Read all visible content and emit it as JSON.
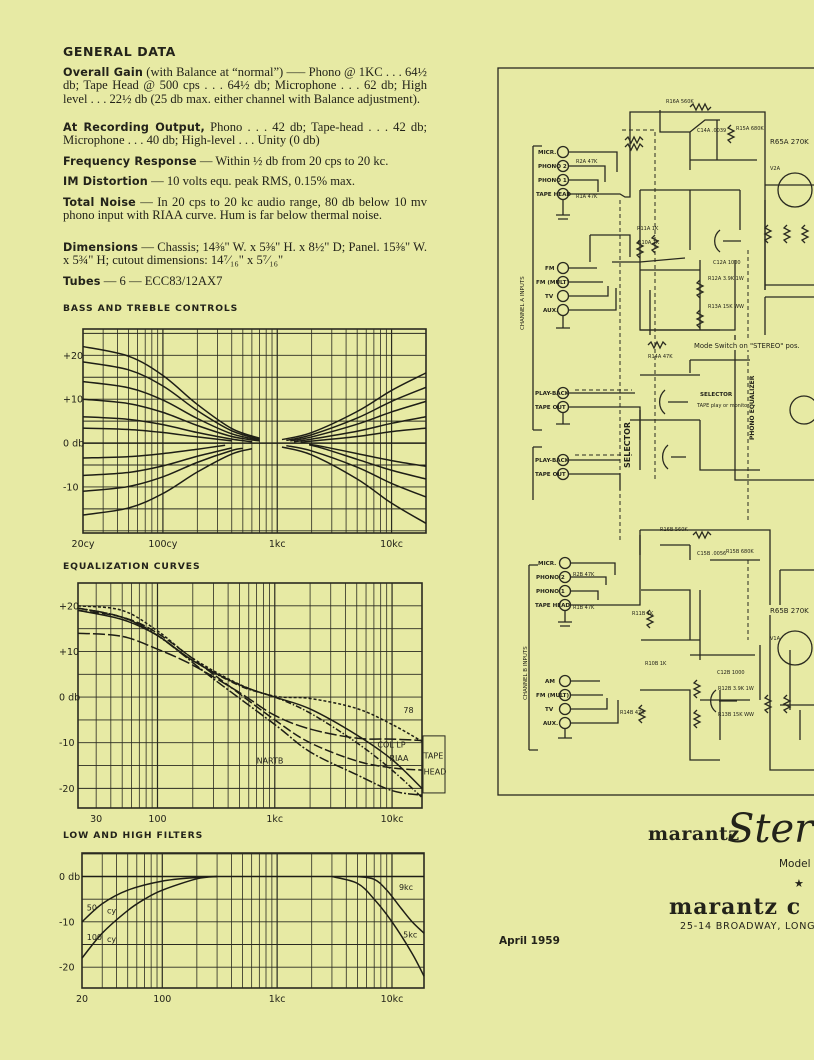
{
  "general_data": {
    "heading": "GENERAL DATA",
    "items": [
      {
        "label": "Overall Gain",
        "text": " (with Balance at “normal”) —– Phono @ 1KC . . . 64½ db; Tape Head @ 500 cps . . . 64½ db; Microphone . . . 62 db; High level . . . 22½ db (25 db max. either channel with Balance adjustment)."
      },
      {
        "label": "At Recording Output,",
        "text": " Phono . . . 42 db; Tape-head . . . 42 db; Microphone . . . 40 db; High-level . . . Unity (0 db)"
      },
      {
        "label": "Frequency Response",
        "text": " — Within ½ db from 20 cps to 20 kc."
      },
      {
        "label": "IM Distortion",
        "text": " — 10 volts equ. peak RMS, 0.15% max."
      },
      {
        "label": "Total Noise",
        "text": " — In 20 cps to 20 kc audio range, 80 db below 10 mv phono input with RIAA curve. Hum is far below thermal noise."
      },
      {
        "label": "Dimensions",
        "text": " — Chassis; 14⅜\" W. x 5⅜\" H. x 8½\" D; Panel. 15⅜\" W. x 5¾\" H; cutout dimensions: 14⁷⁄₁₆\" x 5⁷⁄₁₆\""
      },
      {
        "label": "Tubes",
        "text": " — 6 — ECC83/12AX7"
      }
    ]
  },
  "chart_data": [
    {
      "type": "line",
      "title": "BASS AND TREBLE CONTROLS",
      "x_scale": "log",
      "xlim": [
        20,
        20000
      ],
      "ylim": [
        -20.5,
        26
      ],
      "grid": true,
      "xticks": [
        {
          "value": 20,
          "label": "20cy"
        },
        {
          "value": 100,
          "label": "100cy"
        },
        {
          "value": 1000,
          "label": "1kc"
        },
        {
          "value": 10000,
          "label": "10kc"
        }
      ],
      "yticks": [
        {
          "value": 20,
          "label": "+20"
        },
        {
          "value": 10,
          "label": "+10"
        },
        {
          "value": 0,
          "label": "0 db"
        },
        {
          "value": -10,
          "label": "-10"
        }
      ],
      "series": [
        {
          "x": [
            20,
            20000
          ],
          "y": [
            0,
            0
          ]
        },
        {
          "x": [
            20,
            50,
            100,
            200,
            400,
            700
          ],
          "y": [
            22,
            19.8,
            15.4,
            8.8,
            3.3,
            1.1
          ]
        },
        {
          "x": [
            20,
            50,
            100,
            200,
            400,
            700
          ],
          "y": [
            18.5,
            16.7,
            13,
            7.4,
            2.8,
            0.9
          ]
        },
        {
          "x": [
            20,
            50,
            100,
            200,
            400,
            700
          ],
          "y": [
            14,
            12.6,
            9.8,
            5.6,
            2.1,
            0.7
          ]
        },
        {
          "x": [
            20,
            50,
            100,
            200,
            400,
            700
          ],
          "y": [
            10,
            9,
            7,
            4,
            1.5,
            0.5
          ]
        },
        {
          "x": [
            20,
            50,
            100,
            200,
            400,
            600
          ],
          "y": [
            6,
            5.4,
            4.2,
            2.4,
            0.9,
            0.3
          ]
        },
        {
          "x": [
            20,
            50,
            100,
            200,
            400
          ],
          "y": [
            3.4,
            3.1,
            2.4,
            1.4,
            0.5
          ]
        },
        {
          "x": [
            20,
            50,
            100,
            200,
            350
          ],
          "y": [
            -3.4,
            -3.1,
            -2.4,
            -1.4,
            -0.5
          ]
        },
        {
          "x": [
            20,
            50,
            100,
            200,
            400
          ],
          "y": [
            -7.4,
            -6.7,
            -5.2,
            -3,
            -1.1
          ]
        },
        {
          "x": [
            20,
            50,
            100,
            200,
            400,
            500
          ],
          "y": [
            -11,
            -9.9,
            -7.7,
            -4.4,
            -1.7,
            -1.2
          ]
        },
        {
          "x": [
            20,
            50,
            100,
            200,
            400,
            600
          ],
          "y": [
            -16.4,
            -14.8,
            -11.5,
            -6.6,
            -2.5,
            -1.3
          ]
        },
        {
          "x": [
            1100,
            2000,
            5000,
            10000,
            20000
          ],
          "y": [
            0.8,
            2.4,
            7.2,
            12,
            16
          ]
        },
        {
          "x": [
            1200,
            2000,
            5000,
            10000,
            20000
          ],
          "y": [
            0.6,
            1.9,
            5.7,
            9.5,
            12.7
          ]
        },
        {
          "x": [
            1300,
            2000,
            5000,
            10000,
            20000
          ],
          "y": [
            0.5,
            1.4,
            4.3,
            7.1,
            9.5
          ]
        },
        {
          "x": [
            1400,
            2000,
            5000,
            10000,
            20000
          ],
          "y": [
            0.3,
            0.9,
            2.7,
            4.5,
            6
          ]
        },
        {
          "x": [
            1600,
            2500,
            5000,
            10000,
            20000
          ],
          "y": [
            0.2,
            0.7,
            1.5,
            2.6,
            3.4
          ]
        },
        {
          "x": [
            1900,
            2500,
            5000,
            10000,
            20000
          ],
          "y": [
            -0.3,
            -0.8,
            -2.4,
            -4,
            -5.3
          ]
        },
        {
          "x": [
            1900,
            2500,
            5000,
            10000,
            20000
          ],
          "y": [
            -0.4,
            -1.2,
            -3.7,
            -6.2,
            -8.2
          ]
        },
        {
          "x": [
            1200,
            2000,
            5000,
            10000,
            20000
          ],
          "y": [
            -0.6,
            -1.8,
            -5.5,
            -9.2,
            -12.3
          ]
        },
        {
          "x": [
            1100,
            2000,
            5000,
            10000,
            20000
          ],
          "y": [
            -0.9,
            -2.7,
            -8.2,
            -13.7,
            -18.3
          ]
        }
      ],
      "annotations": []
    },
    {
      "type": "line",
      "title": "EQUALIZATION CURVES",
      "x_scale": "log",
      "xlim": [
        21,
        18000
      ],
      "ylim": [
        -24.3,
        25
      ],
      "grid": true,
      "xticks": [
        {
          "value": 30,
          "label": "30"
        },
        {
          "value": 100,
          "label": "100"
        },
        {
          "value": 1000,
          "label": "1kc"
        },
        {
          "value": 10000,
          "label": "10kc"
        }
      ],
      "yticks": [
        {
          "value": 20,
          "label": "+20"
        },
        {
          "value": 10,
          "label": "+10"
        },
        {
          "value": 0,
          "label": "0 db"
        },
        {
          "value": -10,
          "label": "-10"
        },
        {
          "value": -20,
          "label": "-20"
        }
      ],
      "series": [
        {
          "name": "78",
          "x": [
            21,
            50,
            100,
            200,
            500,
            1000,
            2000,
            5000,
            10000,
            18000
          ],
          "y": [
            20,
            19,
            14.5,
            8.5,
            2.8,
            0.2,
            -0.3,
            -2.5,
            -6,
            -9.7
          ]
        },
        {
          "name": "RIAA",
          "x": [
            21,
            50,
            100,
            200,
            500,
            1000,
            2000,
            5000,
            10000,
            18000
          ],
          "y": [
            19,
            17,
            13.5,
            8,
            2.7,
            0,
            -2.6,
            -8.3,
            -13.7,
            -20
          ]
        },
        {
          "name": "COL LP",
          "x": [
            21,
            50,
            100,
            200,
            500,
            1000,
            2000,
            5000,
            10000,
            18000
          ],
          "y": [
            19.5,
            17.5,
            13.5,
            8,
            2.5,
            0,
            -3.5,
            -10,
            -16,
            -22
          ]
        },
        {
          "name": "NARTB",
          "x": [
            21,
            50,
            100,
            300,
            1000,
            2000,
            5000,
            10000,
            18000
          ],
          "y": [
            19,
            17.5,
            14,
            5,
            -5,
            -10,
            -14,
            -15.5,
            -16
          ]
        },
        {
          "x": [
            21,
            50,
            100,
            200,
            500,
            1000,
            2000,
            5000,
            10000,
            18000
          ],
          "y": [
            14,
            13.3,
            10.5,
            7,
            1,
            -4,
            -7,
            -9,
            -9.2,
            -9.5
          ]
        },
        {
          "x": [
            21,
            50,
            100,
            300,
            1000,
            2000,
            5000,
            10000,
            18000
          ],
          "y": [
            19.5,
            17.5,
            13.5,
            4,
            -6,
            -12,
            -17,
            -20.5,
            -21.5
          ]
        }
      ],
      "annotations": [
        {
          "text": "78",
          "x": 12500,
          "y": -3.5
        },
        {
          "text": "COL LP",
          "x": 7500,
          "y": -11
        },
        {
          "text": "RIAA",
          "x": 9500,
          "y": -14
        },
        {
          "text": "NARTB",
          "x": 700,
          "y": -14.5
        },
        {
          "text": "TAPE",
          "x": 18600,
          "y": -13.5
        },
        {
          "text": "HEAD",
          "x": 18600,
          "y": -17
        }
      ]
    },
    {
      "type": "line",
      "title": "LOW AND HIGH FILTERS",
      "x_scale": "log",
      "xlim": [
        20,
        19000
      ],
      "ylim": [
        -24.6,
        5.2
      ],
      "grid": true,
      "xticks": [
        {
          "value": 20,
          "label": "20"
        },
        {
          "value": 100,
          "label": "100"
        },
        {
          "value": 1000,
          "label": "1kc"
        },
        {
          "value": 10000,
          "label": "10kc"
        }
      ],
      "yticks": [
        {
          "value": 0,
          "label": "0 db"
        },
        {
          "value": -10,
          "label": "-10"
        },
        {
          "value": -20,
          "label": "-20"
        }
      ],
      "series": [
        {
          "x": [
            20,
            19000
          ],
          "y": [
            0,
            0
          ]
        },
        {
          "name": "50 cy",
          "x": [
            20,
            30,
            50,
            100,
            200,
            300
          ],
          "y": [
            -10,
            -6,
            -3,
            -1,
            -0.2,
            0
          ]
        },
        {
          "name": "100 cy",
          "x": [
            20,
            30,
            50,
            70,
            100,
            200,
            300
          ],
          "y": [
            -18,
            -12.5,
            -7.5,
            -5,
            -3,
            -0.5,
            0
          ]
        },
        {
          "name": "9kc",
          "x": [
            5000,
            7000,
            9000,
            12000,
            15000,
            19000
          ],
          "y": [
            0,
            -0.6,
            -3,
            -7,
            -10,
            -12.5
          ]
        },
        {
          "name": "5kc",
          "x": [
            3000,
            5000,
            7000,
            10000,
            15000,
            19000
          ],
          "y": [
            0,
            -1.5,
            -5,
            -10,
            -17,
            -22
          ]
        }
      ],
      "annotations": [
        {
          "text": "50",
          "x": 22,
          "y": -7.5
        },
        {
          "text": "cy",
          "x": 33,
          "y": -8.2
        },
        {
          "text": "100",
          "x": 22,
          "y": -14
        },
        {
          "text": "cy",
          "x": 33,
          "y": -14.5
        },
        {
          "text": "9kc",
          "x": 11500,
          "y": -3
        },
        {
          "text": "5kc",
          "x": 12500,
          "y": -13.5
        }
      ]
    }
  ],
  "schematic": {
    "ch_a": "CHANNEL A INPUTS",
    "ch_b": "CHANNEL B INPUTS",
    "micr": "MICR.",
    "phono2": "PHONO 2",
    "phono1": "PHONO 1",
    "tape_head": "TAPE HEAD",
    "fm": "FM",
    "fm_mult": "FM (MULT)",
    "tv": "TV",
    "aux": "AUX.",
    "am": "AM",
    "playback": "PLAY-BACK",
    "tape_out": "TAPE OUT",
    "selector": "SELECTOR",
    "selector2": "SELECTOR",
    "tape_play": "TAPE play or monitor",
    "phono_eq": "PHONO EQUALIZER",
    "r16a": "R16A 560K",
    "r15a": "R15A 680K",
    "c14a": "C14A .0039",
    "r2a": "R2A 47K",
    "r1a": "R1A 47K",
    "r11a": "R11A 1K",
    "r10a": "R10A 1K",
    "c12a": "C12A 1000",
    "r12a": "R12A 3.9K 1W",
    "r13a": "R13A 15K WW",
    "r14a": "R14A 47K",
    "v2a": "V2A",
    "r65a": "R65A 270K",
    "r16b": "R16B 560K",
    "r15b": "R15B 680K",
    "c15b": "C15B .0056",
    "r2b": "R2B 47K",
    "r1b": "R1B 47K",
    "r11b": "R11B 1K",
    "r10b": "R10B 1K",
    "c12b": "C12B 1000",
    "r12b": "R12B 3.9K 1W",
    "r13b": "R13B 15K WW",
    "r14b": "R14B 47K",
    "v1a": "V1A",
    "r65b": "R65B 270K",
    "mode": "Mode Switch on \"STEREO\" pos."
  },
  "brand": {
    "wordmark": "marantz",
    "script": "Ster",
    "model": "Model",
    "star": "★",
    "company": "marantz c",
    "address": "25-14 BROADWAY, LONG"
  },
  "date": "April 1959"
}
